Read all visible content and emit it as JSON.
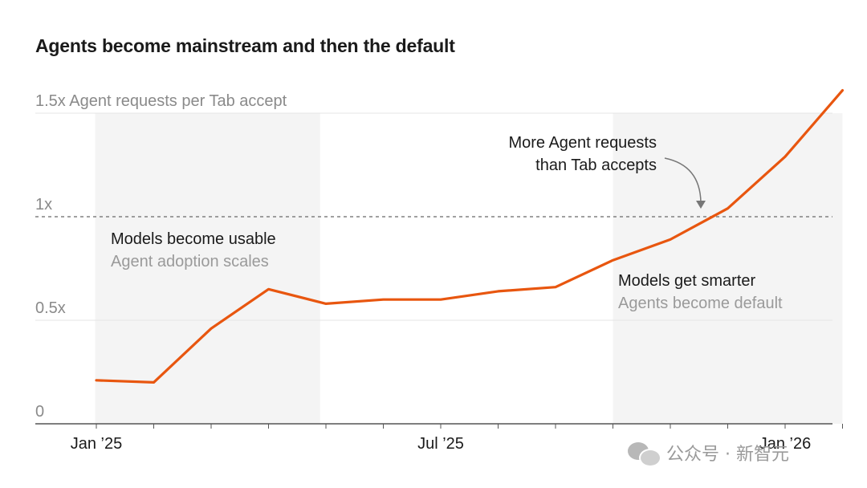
{
  "title": "Agents become mainstream and then the default",
  "watermark": "公众号 · 新智元",
  "chart_data": {
    "type": "line",
    "title": "Agents become mainstream and then the default",
    "ylabel": "1.5x Agent requests per Tab accept",
    "ylim": [
      0,
      1.5
    ],
    "y_ticks": [
      {
        "value": 0,
        "label": "0"
      },
      {
        "value": 0.5,
        "label": "0.5x"
      },
      {
        "value": 1,
        "label": "1x"
      },
      {
        "value": 1.5,
        "label": "1.5x Agent requests per Tab accept"
      }
    ],
    "x_tick_labels": [
      {
        "index": 0,
        "label": "Jan ’25"
      },
      {
        "index": 6,
        "label": "Jul ’25"
      },
      {
        "index": 12,
        "label": "Jan ’26"
      }
    ],
    "reference_line": {
      "value": 1,
      "style": "dashed"
    },
    "series": [
      {
        "values": [
          0.21,
          0.2,
          0.46,
          0.65,
          0.58,
          0.6,
          0.6,
          0.64,
          0.66,
          0.79,
          0.89,
          1.04,
          1.29,
          1.61
        ],
        "color": "#e8560f"
      }
    ],
    "shaded_regions": [
      {
        "from": -0.02,
        "to": 3.9,
        "text": [
          "Models become usable",
          "Agent adoption scales"
        ]
      },
      {
        "from": 9.0,
        "to": 13.0,
        "text": [
          "Models get smarter",
          "Agents become default"
        ]
      }
    ],
    "annotation": {
      "lines": [
        "More Agent requests",
        "than Tab accepts"
      ],
      "points_to_index": 11
    }
  }
}
